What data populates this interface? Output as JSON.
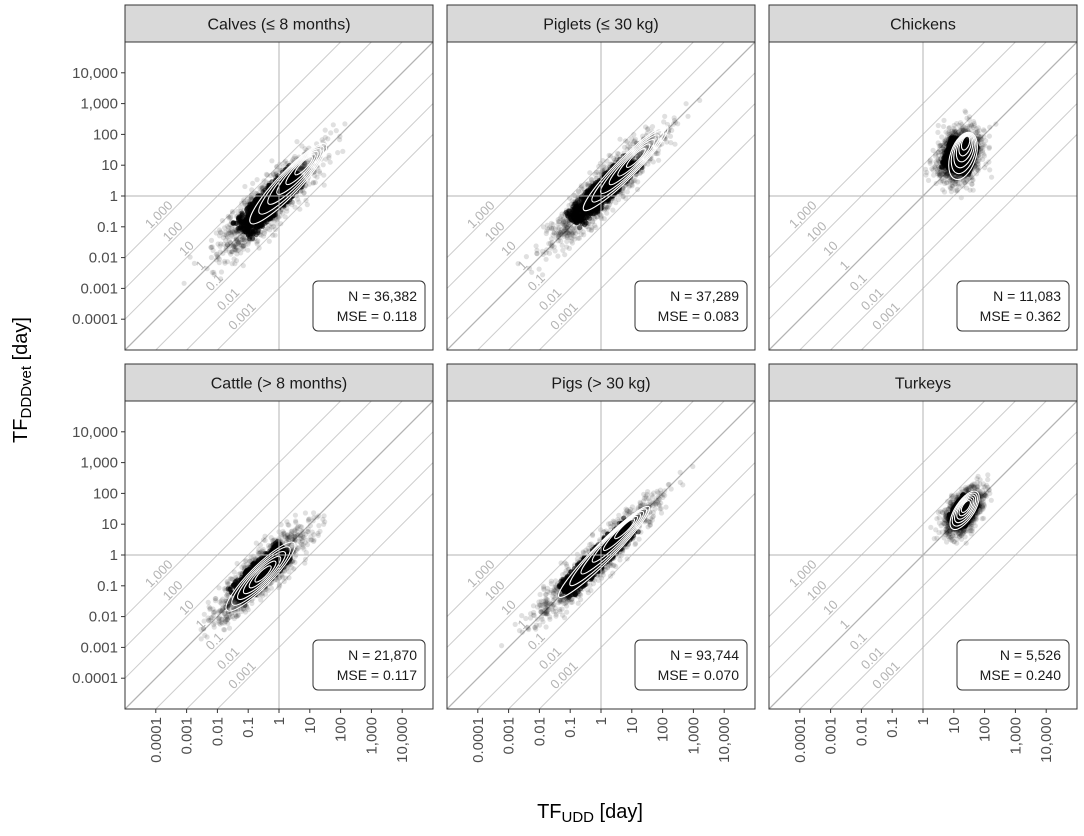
{
  "chart_data": {
    "type": "scatter",
    "scale": "log10",
    "xlabel": {
      "main": "TF",
      "sub": "UDD",
      "unit": " [day]"
    },
    "ylabel": {
      "main": "TF",
      "sub": "DDDvet",
      "unit": " [day]"
    },
    "xlim_log10": [
      -5,
      5
    ],
    "ylim_log10": [
      -5,
      5
    ],
    "x_ticks": [
      {
        "value": 0.0001,
        "label": "0.0001"
      },
      {
        "value": 0.001,
        "label": "0.001"
      },
      {
        "value": 0.01,
        "label": "0.01"
      },
      {
        "value": 0.1,
        "label": "0.1"
      },
      {
        "value": 1,
        "label": "1"
      },
      {
        "value": 10,
        "label": "10"
      },
      {
        "value": 100,
        "label": "100"
      },
      {
        "value": 1000,
        "label": "1,000"
      },
      {
        "value": 10000,
        "label": "10,000"
      }
    ],
    "y_ticks": [
      {
        "value": 0.0001,
        "label": "0.0001"
      },
      {
        "value": 0.001,
        "label": "0.001"
      },
      {
        "value": 0.01,
        "label": "0.01"
      },
      {
        "value": 0.1,
        "label": "0.1"
      },
      {
        "value": 1,
        "label": "1"
      },
      {
        "value": 10,
        "label": "10"
      },
      {
        "value": 100,
        "label": "100"
      },
      {
        "value": 1000,
        "label": "1,000"
      },
      {
        "value": 10000,
        "label": "10,000"
      }
    ],
    "reference_lines": {
      "vertical_x": 1,
      "horizontal_y": 1,
      "identity": true
    },
    "diagonal_ratios": [
      {
        "ratio": 1000,
        "label": "1,000"
      },
      {
        "ratio": 100,
        "label": "100"
      },
      {
        "ratio": 10,
        "label": "10"
      },
      {
        "ratio": 1,
        "label": "1"
      },
      {
        "ratio": 0.1,
        "label": "0.1"
      },
      {
        "ratio": 0.01,
        "label": "0.01"
      },
      {
        "ratio": 0.001,
        "label": "0.001"
      }
    ],
    "panels": [
      {
        "title": "Calves (≤ 8 months)",
        "n_label": "N = 36,382",
        "mse_label": "MSE = 0.118",
        "cloud": {
          "center_log": [
            -0.3,
            -0.2
          ],
          "spread_along": 1.1,
          "spread_across": 0.28,
          "tilt": 1.05
        },
        "contour_center_log": [
          0.3,
          0.4
        ],
        "contour_peak_log": [
          0.9,
          1.1
        ]
      },
      {
        "title": "Piglets (≤ 30 kg)",
        "n_label": "N = 37,289",
        "mse_label": "MSE = 0.083",
        "cloud": {
          "center_log": [
            0.1,
            0.2
          ],
          "spread_along": 1.2,
          "spread_across": 0.24,
          "tilt": 1.0
        },
        "contour_center_log": [
          0.8,
          0.9
        ],
        "contour_peak_log": [
          1.2,
          1.3
        ]
      },
      {
        "title": "Chickens",
        "n_label": "N = 11,083",
        "mse_label": "MSE = 0.362",
        "cloud": {
          "center_log": [
            1.2,
            1.3
          ],
          "spread_along": 0.45,
          "spread_across": 0.32,
          "tilt": 3.0
        },
        "contour_center_log": [
          1.3,
          1.3
        ],
        "contour_peak_log": [
          1.4,
          1.8
        ]
      },
      {
        "title": "Cattle (> 8 months)",
        "n_label": "N = 21,870",
        "mse_label": "MSE = 0.117",
        "cloud": {
          "center_log": [
            -0.6,
            -0.6
          ],
          "spread_along": 0.95,
          "spread_across": 0.26,
          "tilt": 1.0
        },
        "contour_center_log": [
          -0.6,
          -0.7
        ],
        "contour_peak_log": [
          -0.5,
          -0.6
        ]
      },
      {
        "title": "Pigs (> 30 kg)",
        "n_label": "N = 93,744",
        "mse_label": "MSE = 0.070",
        "cloud": {
          "center_log": [
            -0.1,
            -0.1
          ],
          "spread_along": 1.3,
          "spread_across": 0.22,
          "tilt": 1.0
        },
        "contour_center_log": [
          0.1,
          0.1
        ],
        "contour_peak_log": [
          0.9,
          1.0
        ]
      },
      {
        "title": "Turkeys",
        "n_label": "N = 5,526",
        "mse_label": "MSE = 0.240",
        "cloud": {
          "center_log": [
            1.3,
            1.4
          ],
          "spread_along": 0.4,
          "spread_across": 0.22,
          "tilt": 1.5
        },
        "contour_center_log": [
          1.35,
          1.45
        ],
        "contour_peak_log": [
          1.4,
          1.6
        ]
      }
    ]
  }
}
